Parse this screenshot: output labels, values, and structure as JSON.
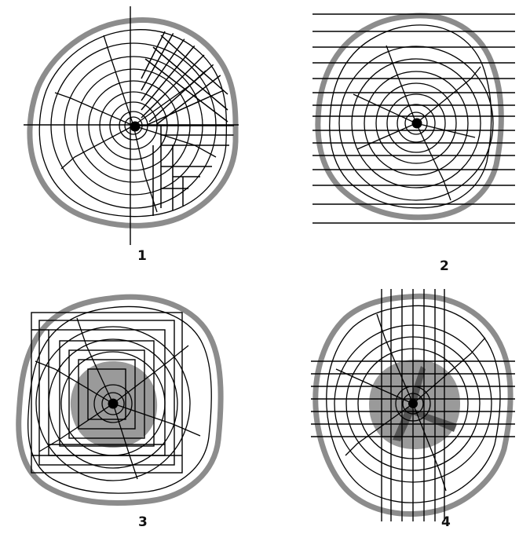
{
  "panels": [
    {
      "label": "1"
    },
    {
      "label": "2"
    },
    {
      "label": "3"
    },
    {
      "label": "4"
    }
  ],
  "colors": {
    "bark": "#8c8c8c",
    "heartwood": "#9a9a9a",
    "pith": "#000000",
    "lines": "#000000"
  }
}
